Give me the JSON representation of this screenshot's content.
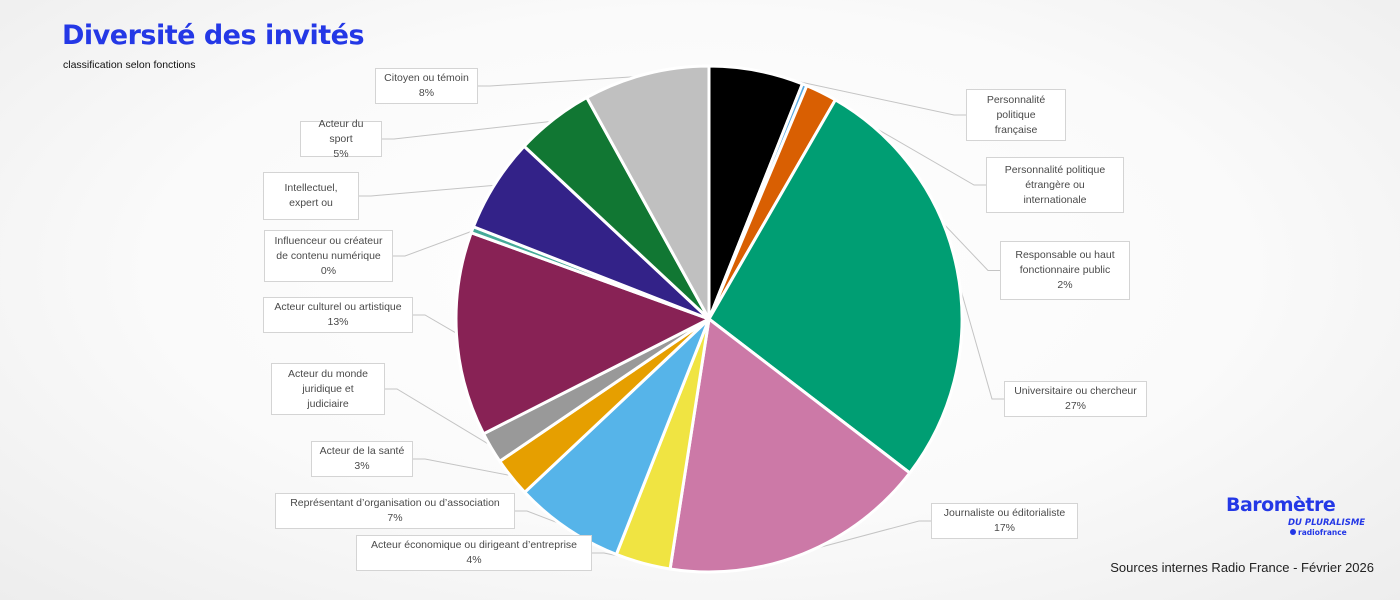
{
  "header": {
    "title": "Diversité des invités",
    "subtitle": "classification selon fonctions"
  },
  "chart_data": {
    "type": "pie",
    "title": "Diversité des invités",
    "subtitle": "classification selon fonctions",
    "start_angle_deg": 0,
    "direction": "clockwise",
    "slices": [
      {
        "label": "Personnalité politique française",
        "value": 6,
        "value_label": "",
        "color": "#000000"
      },
      {
        "label": "Personnalité politique étrangère ou internationale",
        "value": 0.3,
        "value_label": "",
        "color": "#58a9e0"
      },
      {
        "label": "Responsable ou haut fonctionnaire public",
        "value": 2,
        "value_label": "2%",
        "color": "#d95f02"
      },
      {
        "label": "Universitaire ou chercheur",
        "value": 27,
        "value_label": "27%",
        "color": "#009e73"
      },
      {
        "label": "Journaliste ou éditorialiste",
        "value": 17,
        "value_label": "17%",
        "color": "#cc79a7"
      },
      {
        "label": "Acteur économique ou dirigeant d’entreprise",
        "value": 3.5,
        "value_label": "4%",
        "color": "#f0e442"
      },
      {
        "label": "Représentant d’organisation ou d’association",
        "value": 7,
        "value_label": "7%",
        "color": "#56b4e9"
      },
      {
        "label": "Acteur de la santé",
        "value": 2.5,
        "value_label": "3%",
        "color": "#e69f00"
      },
      {
        "label": "Acteur du monde juridique et judiciaire",
        "value": 2,
        "value_label": "",
        "color": "#999999"
      },
      {
        "label": "Acteur culturel ou artistique",
        "value": 13,
        "value_label": "13%",
        "color": "#882255"
      },
      {
        "label": "Influenceur ou créateur de contenu numérique",
        "value": 0.4,
        "value_label": "0%",
        "color": "#44aa99"
      },
      {
        "label": "Intellectuel, expert ou",
        "value": 6,
        "value_label": "",
        "color": "#332288"
      },
      {
        "label": "Acteur du sport",
        "value": 5,
        "value_label": "5%",
        "color": "#117733"
      },
      {
        "label": "Citoyen ou témoin",
        "value": 8,
        "value_label": "8%",
        "color": "#c0c0c0"
      }
    ]
  },
  "callouts": [
    {
      "lines": [
        "Personnalité",
        "politique",
        "française"
      ]
    },
    {
      "lines": [
        "Personnalité politique",
        "étrangère ou",
        "internationale"
      ]
    },
    {
      "lines": [
        "Responsable ou haut",
        "fonctionnaire public",
        "2%"
      ]
    },
    {
      "lines": [
        "Universitaire ou chercheur",
        "27%"
      ]
    },
    {
      "lines": [
        "Journaliste ou éditorialiste",
        "17%"
      ]
    },
    {
      "lines": [
        "Acteur économique ou dirigeant d’entreprise",
        "4%"
      ]
    },
    {
      "lines": [
        "Représentant d’organisation ou d’association",
        "7%"
      ]
    },
    {
      "lines": [
        "Acteur de la santé",
        "3%"
      ]
    },
    {
      "lines": [
        "Acteur du monde",
        "juridique et",
        "judiciaire"
      ]
    },
    {
      "lines": [
        "Acteur culturel ou artistique",
        "13%"
      ]
    },
    {
      "lines": [
        "Influenceur ou créateur",
        "de contenu numérique",
        "0%"
      ]
    },
    {
      "lines": [
        "Intellectuel,",
        "expert ou"
      ]
    },
    {
      "lines": [
        "Acteur du sport",
        "5%"
      ]
    },
    {
      "lines": [
        "Citoyen ou témoin",
        "8%"
      ]
    }
  ],
  "logo": {
    "main": "Baromètre",
    "sub": "DU PLURALISME",
    "brand": "radiofrance"
  },
  "footer": {
    "source": "Sources internes Radio France - Février 2026"
  }
}
